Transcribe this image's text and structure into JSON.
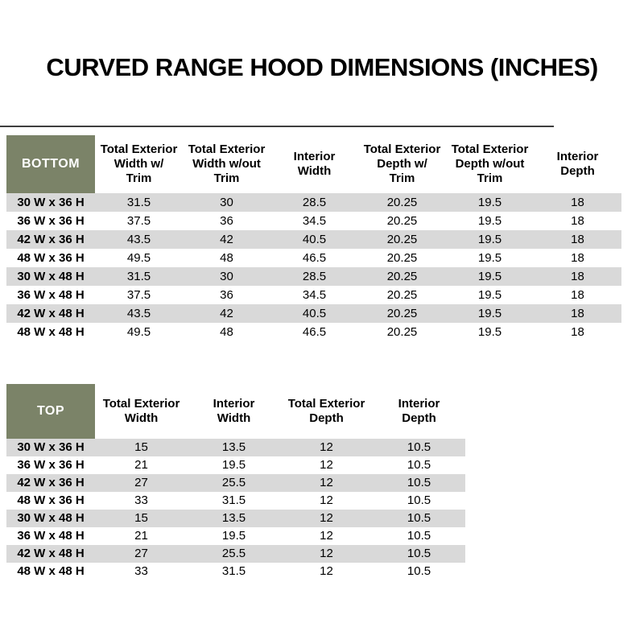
{
  "header": {
    "title": "CURVED RANGE HOOD DIMENSIONS (INCHES)"
  },
  "colors": {
    "corner_cell_green": "#7B8368",
    "band_gray": "#D9D9D9",
    "rule_dark": "#3F3F3F",
    "text_black": "#000000",
    "corner_text_white": "#FFFFFF"
  },
  "chart_data": [
    {
      "type": "table",
      "corner_label": "BOTTOM",
      "columns": [
        "Total Exterior\nWidth w/\nTrim",
        "Total Exterior\nWidth w/out\nTrim",
        "Interior\nWidth",
        "Total Exterior\nDepth w/\nTrim",
        "Total Exterior\nDepth w/out\nTrim",
        "Interior\nDepth"
      ],
      "rows": [
        [
          "30 W x 36 H",
          "31.5",
          "30",
          "28.5",
          "20.25",
          "19.5",
          "18"
        ],
        [
          "36 W x 36 H",
          "37.5",
          "36",
          "34.5",
          "20.25",
          "19.5",
          "18"
        ],
        [
          "42 W x 36 H",
          "43.5",
          "42",
          "40.5",
          "20.25",
          "19.5",
          "18"
        ],
        [
          "48 W x 36 H",
          "49.5",
          "48",
          "46.5",
          "20.25",
          "19.5",
          "18"
        ],
        [
          "30 W x 48 H",
          "31.5",
          "30",
          "28.5",
          "20.25",
          "19.5",
          "18"
        ],
        [
          "36 W x 48 H",
          "37.5",
          "36",
          "34.5",
          "20.25",
          "19.5",
          "18"
        ],
        [
          "42 W x 48 H",
          "43.5",
          "42",
          "40.5",
          "20.25",
          "19.5",
          "18"
        ],
        [
          "48 W x 48 H",
          "49.5",
          "48",
          "46.5",
          "20.25",
          "19.5",
          "18"
        ]
      ]
    },
    {
      "type": "table",
      "corner_label": "TOP",
      "columns": [
        "Total Exterior\nWidth",
        "Interior\nWidth",
        "Total Exterior\nDepth",
        "Interior\nDepth"
      ],
      "rows": [
        [
          "30 W x 36 H",
          "15",
          "13.5",
          "12",
          "10.5"
        ],
        [
          "36 W x 36 H",
          "21",
          "19.5",
          "12",
          "10.5"
        ],
        [
          "42 W x 36 H",
          "27",
          "25.5",
          "12",
          "10.5"
        ],
        [
          "48 W x 36 H",
          "33",
          "31.5",
          "12",
          "10.5"
        ],
        [
          "30 W x 48 H",
          "15",
          "13.5",
          "12",
          "10.5"
        ],
        [
          "36 W x 48 H",
          "21",
          "19.5",
          "12",
          "10.5"
        ],
        [
          "42 W x 48 H",
          "27",
          "25.5",
          "12",
          "10.5"
        ],
        [
          "48 W x 48 H",
          "33",
          "31.5",
          "12",
          "10.5"
        ]
      ]
    }
  ]
}
